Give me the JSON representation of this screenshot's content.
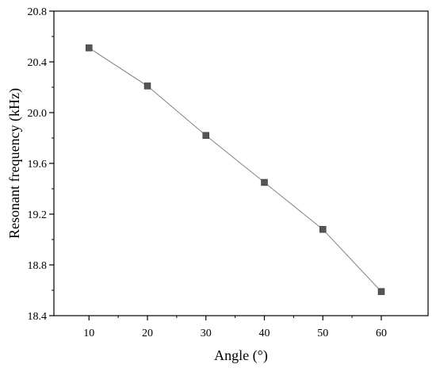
{
  "chart_data": {
    "type": "line",
    "title": "",
    "xlabel": "Angle (°)",
    "ylabel": "Resonant frequency (kHz)",
    "xlim": [
      4,
      68
    ],
    "ylim": [
      18.4,
      20.8
    ],
    "x_ticks": [
      "10",
      "20",
      "30",
      "40",
      "50",
      "60"
    ],
    "y_ticks": [
      "18.4",
      "18.8",
      "19.2",
      "19.6",
      "20.0",
      "20.4",
      "20.8"
    ],
    "grid": false,
    "legend": "none",
    "series": [
      {
        "x": [
          10,
          20,
          30,
          40,
          50,
          60
        ],
        "values": [
          20.51,
          20.21,
          19.82,
          19.45,
          19.08,
          18.59
        ],
        "marker": "square",
        "marker_color": "#555555",
        "line_color": "#808080"
      }
    ]
  }
}
